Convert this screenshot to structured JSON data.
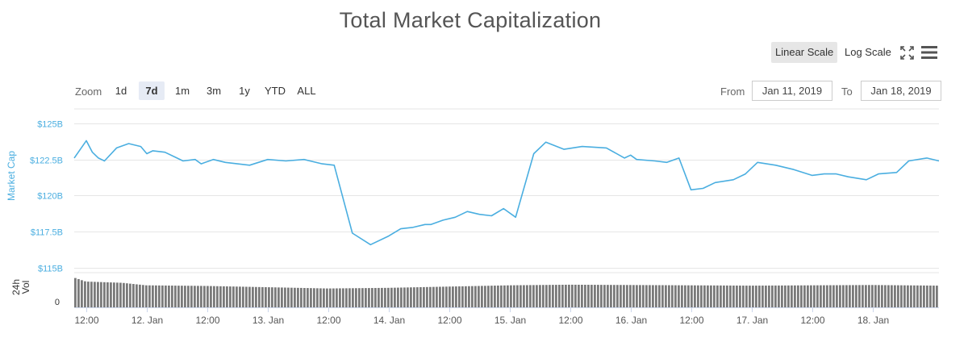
{
  "chart_data": {
    "type": "line",
    "title": "Total Market Capitalization",
    "ylabel": "Market Cap",
    "y_ticks": [
      "$115B",
      "$117.5B",
      "$120B",
      "$122.5B",
      "$125B"
    ],
    "y_tick_values": [
      115,
      117.5,
      120,
      122.5,
      125
    ],
    "ylim": [
      115,
      126
    ],
    "x_tick_labels": [
      "12:00",
      "12. Jan",
      "12:00",
      "13. Jan",
      "12:00",
      "14. Jan",
      "12:00",
      "15. Jan",
      "12:00",
      "16. Jan",
      "12:00",
      "17. Jan",
      "12:00",
      "18. Jan"
    ],
    "x_tick_days": [
      0.5,
      1,
      1.5,
      2,
      2.5,
      3,
      3.5,
      4,
      4.5,
      5,
      5.5,
      6,
      6.5,
      7
    ],
    "xlim_days": [
      0.4,
      7.55
    ],
    "grid": true,
    "series": [
      {
        "name": "Market Cap",
        "color": "#4aaee0",
        "x_days": [
          0.4,
          0.5,
          0.55,
          0.6,
          0.65,
          0.75,
          0.85,
          0.95,
          1.0,
          1.05,
          1.15,
          1.25,
          1.3,
          1.4,
          1.45,
          1.55,
          1.65,
          1.75,
          1.85,
          2.0,
          2.15,
          2.3,
          2.45,
          2.55,
          2.7,
          2.85,
          3.0,
          3.1,
          3.2,
          3.3,
          3.35,
          3.45,
          3.55,
          3.65,
          3.75,
          3.85,
          3.95,
          4.05,
          4.2,
          4.3,
          4.45,
          4.6,
          4.8,
          4.95,
          5.0,
          5.05,
          5.2,
          5.3,
          5.4,
          5.5,
          5.6,
          5.7,
          5.85,
          5.95,
          6.05,
          6.2,
          6.35,
          6.5,
          6.6,
          6.7,
          6.8,
          6.95,
          7.05,
          7.2,
          7.3,
          7.45,
          7.55
        ],
        "y_billions": [
          122.6,
          123.8,
          123.0,
          122.6,
          122.4,
          123.3,
          123.6,
          123.4,
          122.9,
          123.1,
          123.0,
          122.6,
          122.4,
          122.5,
          122.2,
          122.5,
          122.3,
          122.2,
          122.1,
          122.5,
          122.4,
          122.5,
          122.2,
          122.1,
          117.4,
          116.6,
          117.2,
          117.7,
          117.8,
          118.0,
          118.0,
          118.3,
          118.5,
          118.9,
          118.7,
          118.6,
          119.1,
          118.5,
          122.9,
          123.7,
          123.2,
          123.4,
          123.3,
          122.6,
          122.8,
          122.5,
          122.4,
          122.3,
          122.6,
          120.4,
          120.5,
          120.9,
          121.1,
          121.5,
          122.3,
          122.1,
          121.8,
          121.4,
          121.5,
          121.5,
          121.3,
          121.1,
          121.5,
          121.6,
          122.4,
          122.6,
          122.4
        ]
      },
      {
        "name": "24h Vol",
        "color": "#7a7a7a",
        "x_days": [
          0.4,
          0.5,
          0.8,
          1.0,
          1.5,
          2.0,
          2.5,
          3.0,
          3.5,
          4.0,
          4.5,
          5.0,
          5.5,
          6.0,
          6.5,
          7.0,
          7.55
        ],
        "values_relative": [
          0.95,
          0.82,
          0.78,
          0.7,
          0.68,
          0.64,
          0.6,
          0.62,
          0.66,
          0.7,
          0.72,
          0.71,
          0.7,
          0.69,
          0.7,
          0.71,
          0.69
        ]
      }
    ],
    "vol_axis": {
      "title_line1": "24h",
      "title_line2": "Vol",
      "zero_label": "0"
    }
  },
  "toolbar": {
    "linear_label": "Linear Scale",
    "log_label": "Log Scale",
    "fullscreen_icon": "fullscreen-icon",
    "menu_icon": "hamburger-menu-icon"
  },
  "zoom": {
    "label": "Zoom",
    "buttons": [
      {
        "label": "1d",
        "active": false
      },
      {
        "label": "7d",
        "active": true
      },
      {
        "label": "1m",
        "active": false
      },
      {
        "label": "3m",
        "active": false
      },
      {
        "label": "1y",
        "active": false
      },
      {
        "label": "YTD",
        "active": false
      },
      {
        "label": "ALL",
        "active": false
      }
    ]
  },
  "range": {
    "from_label": "From",
    "from_value": "Jan 11, 2019",
    "to_label": "To",
    "to_value": "Jan 18, 2019"
  },
  "colors": {
    "accent": "#4aaee0",
    "grid": "#e6e6e6",
    "active_button": "#e6ebf5",
    "selected_scale": "#e6e6e6"
  }
}
